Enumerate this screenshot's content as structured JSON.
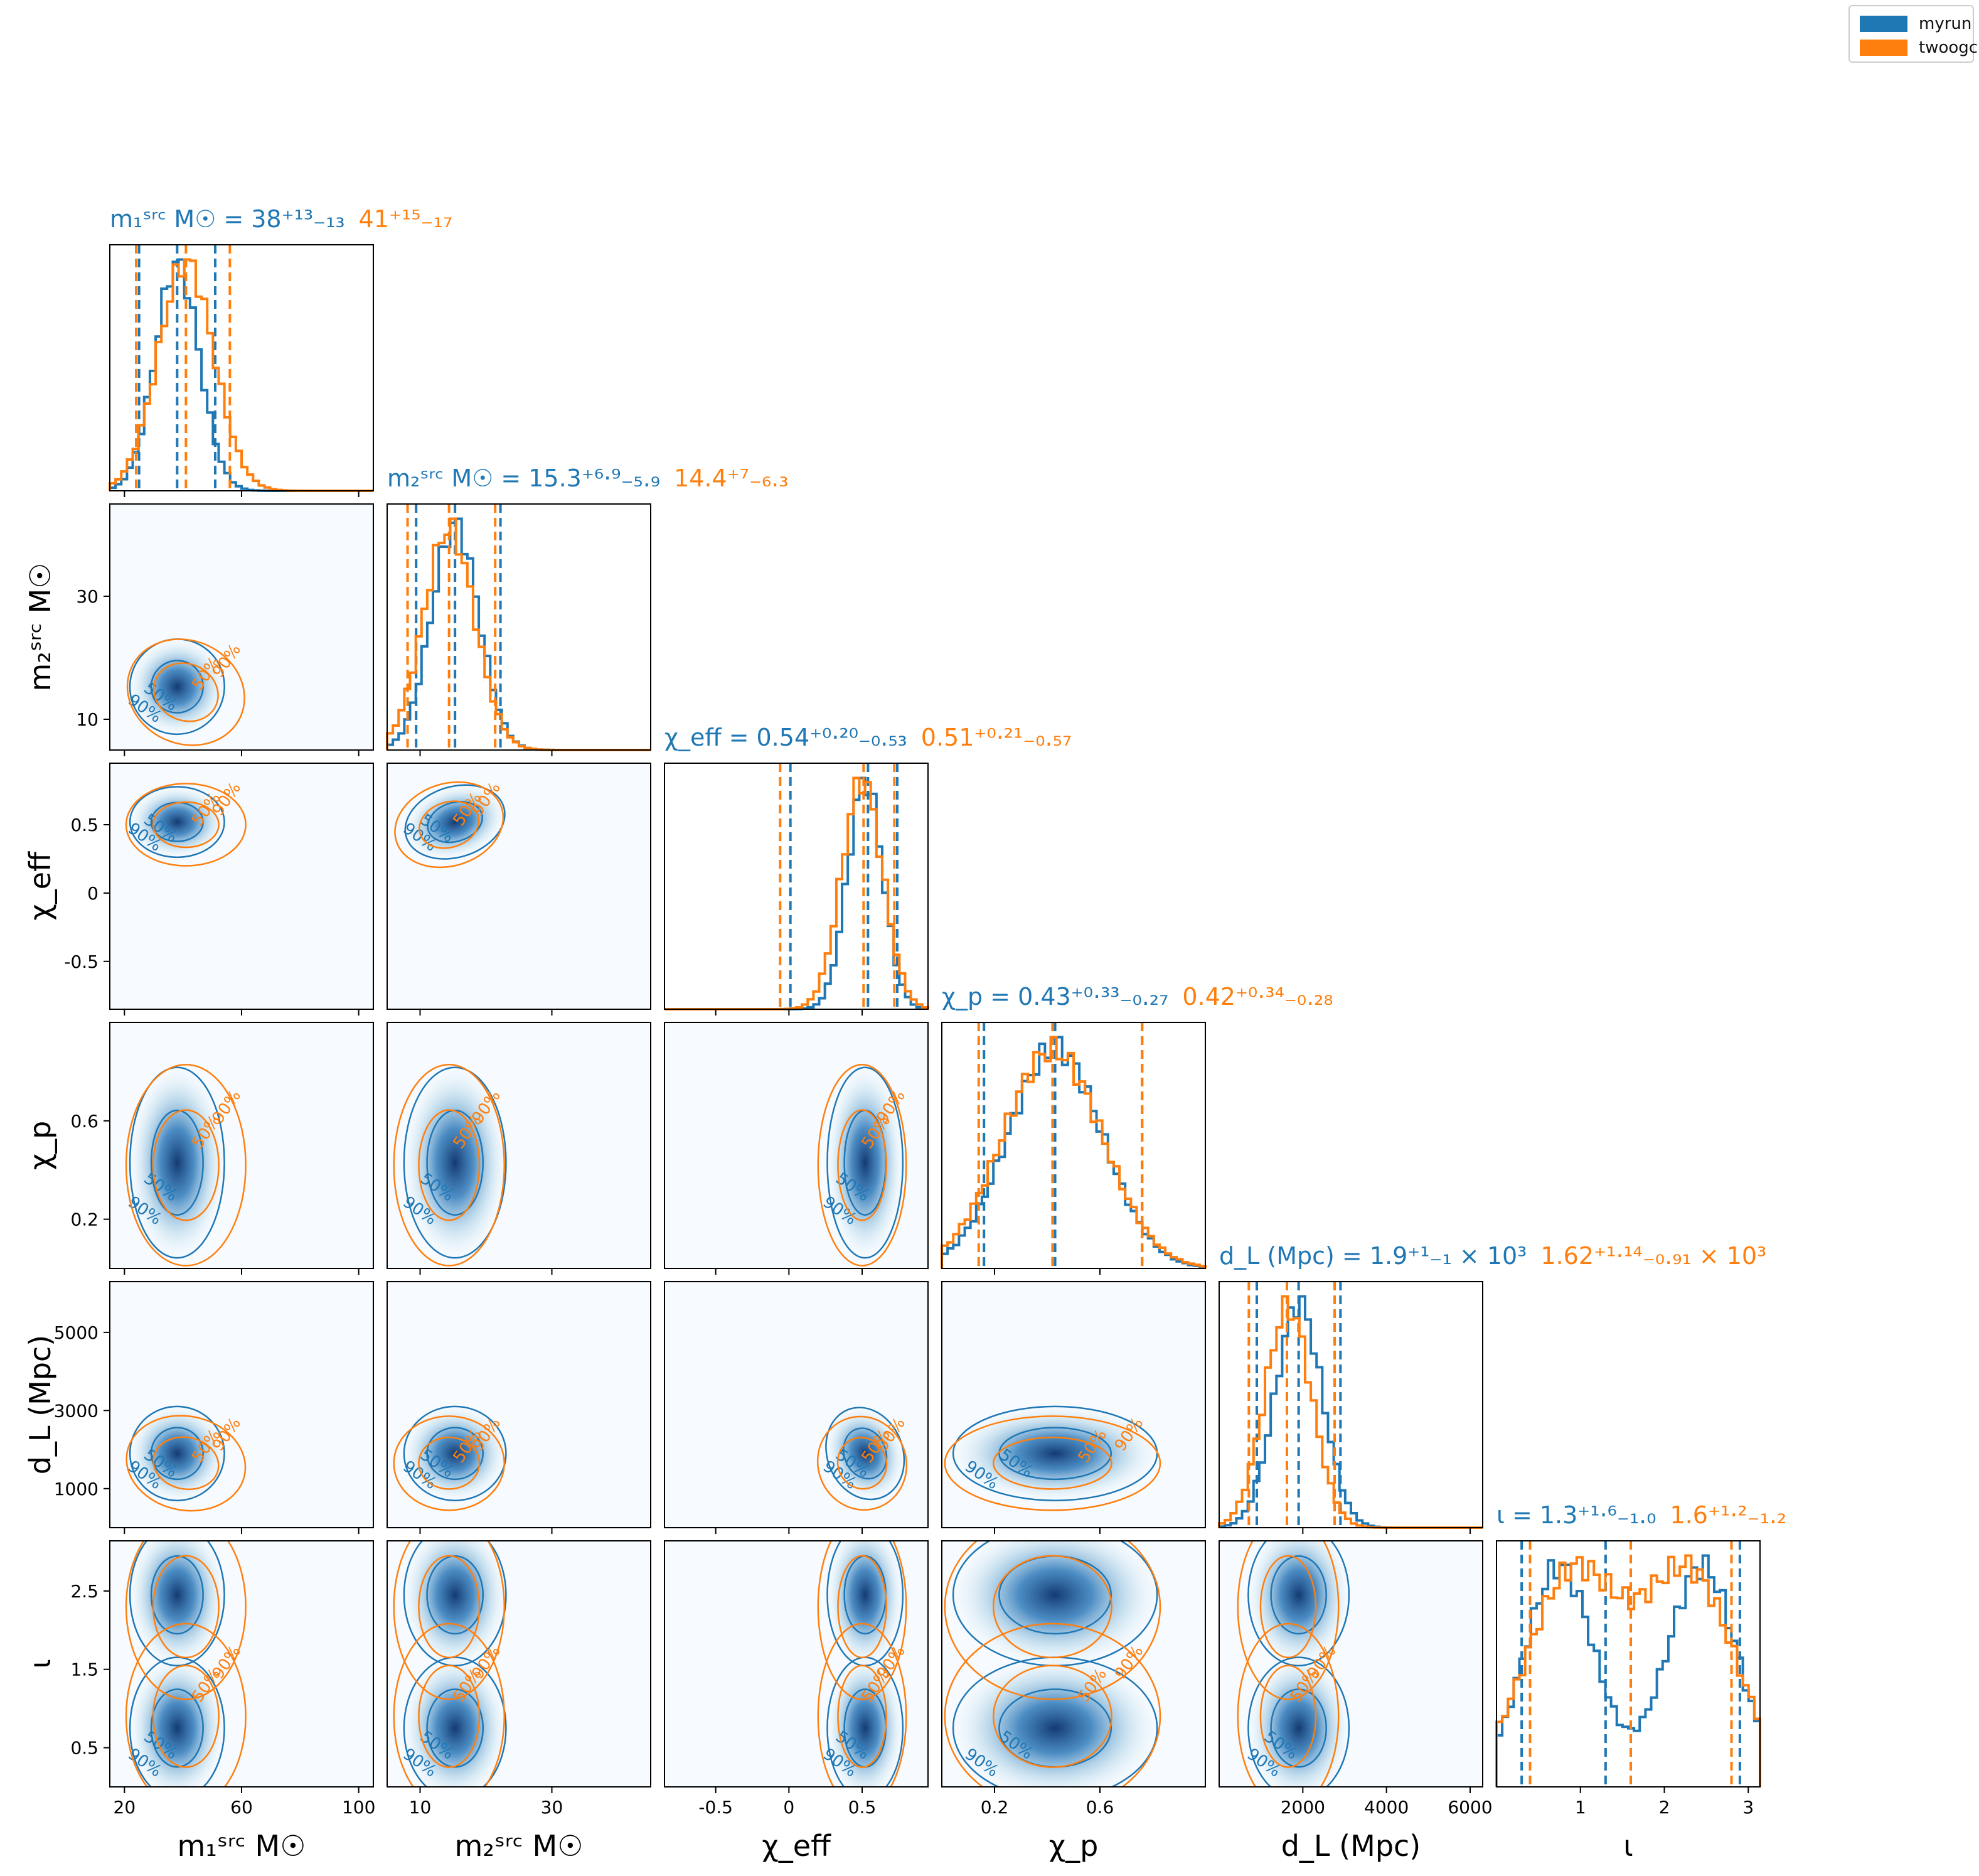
{
  "legend": {
    "entries": [
      {
        "name": "myrun",
        "color": "#1f77b4"
      },
      {
        "name": "twoogc",
        "color": "#ff7f0e"
      }
    ]
  },
  "colors": {
    "myrun": "#1f77b4",
    "twoogc": "#ff7f0e",
    "density": "#08306b"
  },
  "chart_data": {
    "type": "corner",
    "series": [
      "myrun",
      "twoogc"
    ],
    "parameters": [
      {
        "key": "m1",
        "axis_label": "m₁ˢʳᶜ M☉",
        "range": [
          15,
          105
        ],
        "ticks": [
          20,
          60,
          100
        ],
        "ticks_1d": [],
        "title": {
          "myrun": "m₁ˢʳᶜ M☉ = 38⁺¹³₋₁₃",
          "twoogc": "41⁺¹⁵₋₁₇"
        },
        "quantiles": {
          "myrun": [
            25,
            38,
            51
          ],
          "twoogc": [
            24,
            41,
            56
          ]
        },
        "posterior": {
          "myrun": {
            "mean": 38,
            "sd": 7.5
          },
          "twoogc": {
            "mean": 41,
            "sd": 9.5
          }
        }
      },
      {
        "key": "m2",
        "axis_label": "m₂ˢʳᶜ M☉",
        "range": [
          5,
          45
        ],
        "ticks": [
          10,
          30
        ],
        "title": {
          "myrun": "m₂ˢʳᶜ M☉ = 15.3⁺⁶·⁹₋₅.₉",
          "twoogc": "14.4⁺⁷₋₆.₃"
        },
        "quantiles": {
          "myrun": [
            9.4,
            15.3,
            22.2
          ],
          "twoogc": [
            8.1,
            14.4,
            21.4
          ]
        },
        "posterior": {
          "myrun": {
            "mean": 15.3,
            "sd": 3.6
          },
          "twoogc": {
            "mean": 14.4,
            "sd": 3.9
          }
        }
      },
      {
        "key": "chi_eff",
        "axis_label": "χ_eff",
        "range": [
          -0.85,
          0.95
        ],
        "ticks": [
          -0.5,
          0.0,
          0.5
        ],
        "title": {
          "myrun": "χ_eff = 0.54⁺⁰·²⁰₋₀.₅₃",
          "twoogc": "0.51⁺⁰·²¹₋₀.₅₇"
        },
        "quantiles": {
          "myrun": [
            0.01,
            0.54,
            0.74
          ],
          "twoogc": [
            -0.06,
            0.51,
            0.72
          ]
        },
        "posterior": {
          "myrun": {
            "mean": 0.52,
            "sd": 0.12
          },
          "twoogc": {
            "mean": 0.5,
            "sd": 0.14
          }
        }
      },
      {
        "key": "chi_p",
        "axis_label": "χ_p",
        "range": [
          0.0,
          1.0
        ],
        "ticks": [
          0.2,
          0.6
        ],
        "title": {
          "myrun": "χ_p = 0.43⁺⁰·³³₋₀.₂₇",
          "twoogc": "0.42⁺⁰·³⁴₋₀.₂₈"
        },
        "quantiles": {
          "myrun": [
            0.16,
            0.43,
            0.76
          ],
          "twoogc": [
            0.14,
            0.42,
            0.76
          ]
        },
        "posterior": {
          "myrun": {
            "mean": 0.43,
            "sd": 0.18
          },
          "twoogc": {
            "mean": 0.42,
            "sd": 0.19
          }
        }
      },
      {
        "key": "d_L",
        "axis_label": "d_L (Mpc)",
        "range": [
          0,
          6300
        ],
        "ticks": [
          1000,
          3000,
          5000
        ],
        "ticks_x": [
          2000,
          4000,
          6000
        ],
        "title": {
          "myrun": "d_L (Mpc) = 1.9⁺¹₋₁ × 10³",
          "twoogc": "1.62⁺¹·¹⁴₋₀.₉₁ × 10³"
        },
        "quantiles": {
          "myrun": [
            900,
            1900,
            2900
          ],
          "twoogc": [
            710,
            1620,
            2760
          ]
        },
        "posterior": {
          "myrun": {
            "mean": 1900,
            "sd": 560
          },
          "twoogc": {
            "mean": 1650,
            "sd": 560
          }
        }
      },
      {
        "key": "iota",
        "axis_label": "ι",
        "range": [
          0.0,
          3.14
        ],
        "ticks": [
          0.5,
          1.5,
          2.5
        ],
        "ticks_x": [
          1,
          2,
          3
        ],
        "title": {
          "myrun": "ι = 1.3⁺¹·⁶₋₁.₀",
          "twoogc": "1.6⁺¹·²₋₁.₂"
        },
        "quantiles": {
          "myrun": [
            0.3,
            1.3,
            2.9
          ],
          "twoogc": [
            0.4,
            1.6,
            2.8
          ]
        },
        "posterior": {
          "myrun": {
            "modes": [
              0.75,
              2.45
            ],
            "sd": 0.42
          },
          "twoogc": {
            "modes": [
              0.9,
              2.3
            ],
            "sd": 0.55
          }
        }
      }
    ],
    "contour_labels": [
      "50%",
      "90%"
    ],
    "correlations": {
      "1,0": -0.55,
      "2,0": 0.0,
      "2,1": 0.35,
      "3,0": 0.0,
      "3,1": 0.0,
      "3,2": 0.0,
      "4,0": -0.2,
      "4,1": 0.0,
      "4,2": 0.45,
      "4,3": 0.0,
      "5,0": 0.0,
      "5,1": 0.0,
      "5,2": 0.0,
      "5,3": 0.0,
      "5,4": 0.0
    }
  }
}
